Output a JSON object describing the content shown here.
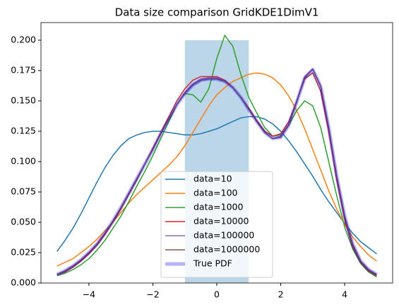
{
  "chart_data": {
    "type": "line",
    "title": "Data size comparison GridKDE1DimV1",
    "x": [
      -5,
      -4.75,
      -4.5,
      -4.25,
      -4,
      -3.75,
      -3.5,
      -3.25,
      -3,
      -2.75,
      -2.5,
      -2.25,
      -2,
      -1.75,
      -1.5,
      -1.25,
      -1,
      -0.75,
      -0.5,
      -0.25,
      0,
      0.25,
      0.5,
      0.75,
      1,
      1.25,
      1.5,
      1.75,
      2,
      2.25,
      2.5,
      2.75,
      3,
      3.25,
      3.5,
      3.75,
      4,
      4.25,
      4.5,
      4.75,
      5
    ],
    "series": [
      {
        "name": "data=10",
        "color": "#1f77b4",
        "width": 1.5,
        "alpha": 1,
        "values": [
          0.026,
          0.035,
          0.045,
          0.057,
          0.07,
          0.083,
          0.095,
          0.105,
          0.113,
          0.119,
          0.122,
          0.124,
          0.125,
          0.125,
          0.124,
          0.123,
          0.122,
          0.122,
          0.123,
          0.125,
          0.127,
          0.13,
          0.133,
          0.136,
          0.137,
          0.137,
          0.135,
          0.131,
          0.125,
          0.117,
          0.108,
          0.098,
          0.088,
          0.077,
          0.067,
          0.058,
          0.049,
          0.041,
          0.034,
          0.029,
          0.024
        ]
      },
      {
        "name": "data=100",
        "color": "#ff7f0e",
        "width": 1.5,
        "alpha": 1,
        "values": [
          0.014,
          0.017,
          0.02,
          0.025,
          0.03,
          0.036,
          0.043,
          0.05,
          0.058,
          0.066,
          0.073,
          0.079,
          0.085,
          0.091,
          0.097,
          0.104,
          0.113,
          0.124,
          0.135,
          0.146,
          0.155,
          0.161,
          0.166,
          0.169,
          0.172,
          0.173,
          0.172,
          0.169,
          0.163,
          0.154,
          0.142,
          0.127,
          0.11,
          0.093,
          0.076,
          0.061,
          0.048,
          0.038,
          0.03,
          0.023,
          0.018
        ]
      },
      {
        "name": "data=1000",
        "color": "#2ca02c",
        "width": 1.5,
        "alpha": 1,
        "values": [
          0.006,
          0.008,
          0.011,
          0.015,
          0.02,
          0.027,
          0.035,
          0.045,
          0.055,
          0.067,
          0.08,
          0.092,
          0.105,
          0.119,
          0.133,
          0.147,
          0.156,
          0.155,
          0.149,
          0.16,
          0.185,
          0.204,
          0.195,
          0.172,
          0.153,
          0.14,
          0.128,
          0.121,
          0.122,
          0.13,
          0.142,
          0.15,
          0.146,
          0.128,
          0.1,
          0.072,
          0.046,
          0.028,
          0.016,
          0.009,
          0.005
        ]
      },
      {
        "name": "data=10000",
        "color": "#d62728",
        "width": 1.5,
        "alpha": 1,
        "values": [
          0.007,
          0.009,
          0.013,
          0.018,
          0.024,
          0.031,
          0.04,
          0.05,
          0.061,
          0.073,
          0.085,
          0.098,
          0.111,
          0.124,
          0.137,
          0.15,
          0.16,
          0.167,
          0.17,
          0.17,
          0.17,
          0.167,
          0.161,
          0.153,
          0.144,
          0.134,
          0.125,
          0.121,
          0.123,
          0.133,
          0.15,
          0.168,
          0.173,
          0.158,
          0.125,
          0.085,
          0.052,
          0.03,
          0.017,
          0.01,
          0.006
        ]
      },
      {
        "name": "data=100000",
        "color": "#9467bd",
        "width": 1.5,
        "alpha": 1,
        "values": [
          0.007,
          0.01,
          0.014,
          0.019,
          0.025,
          0.032,
          0.041,
          0.051,
          0.062,
          0.074,
          0.086,
          0.098,
          0.11,
          0.123,
          0.135,
          0.147,
          0.157,
          0.164,
          0.168,
          0.169,
          0.169,
          0.166,
          0.161,
          0.153,
          0.143,
          0.133,
          0.124,
          0.119,
          0.121,
          0.131,
          0.15,
          0.17,
          0.176,
          0.162,
          0.128,
          0.088,
          0.055,
          0.032,
          0.018,
          0.011,
          0.007
        ]
      },
      {
        "name": "data=1000000",
        "color": "#8c564b",
        "width": 1.5,
        "alpha": 1,
        "values": [
          0.007,
          0.01,
          0.014,
          0.019,
          0.025,
          0.032,
          0.041,
          0.051,
          0.062,
          0.074,
          0.086,
          0.098,
          0.11,
          0.123,
          0.135,
          0.147,
          0.156,
          0.163,
          0.167,
          0.168,
          0.168,
          0.166,
          0.161,
          0.153,
          0.143,
          0.133,
          0.124,
          0.119,
          0.12,
          0.13,
          0.149,
          0.169,
          0.176,
          0.162,
          0.128,
          0.088,
          0.055,
          0.032,
          0.018,
          0.011,
          0.007
        ]
      },
      {
        "name": "True PDF",
        "color": "#0000ff",
        "width": 5,
        "alpha": 0.3,
        "values": [
          0.007,
          0.01,
          0.014,
          0.019,
          0.025,
          0.032,
          0.041,
          0.051,
          0.062,
          0.074,
          0.086,
          0.098,
          0.11,
          0.123,
          0.135,
          0.147,
          0.156,
          0.163,
          0.167,
          0.168,
          0.168,
          0.166,
          0.161,
          0.153,
          0.143,
          0.133,
          0.124,
          0.119,
          0.12,
          0.13,
          0.149,
          0.169,
          0.176,
          0.162,
          0.128,
          0.088,
          0.055,
          0.032,
          0.018,
          0.011,
          0.007
        ]
      }
    ],
    "histogram": {
      "bins": [
        -1,
        1
      ],
      "values": [
        0.2
      ],
      "color": "#1f77b4",
      "alpha": 0.3
    },
    "xlim": [
      -5.5,
      5.5
    ],
    "ylim": [
      0,
      0.2145
    ],
    "xticks": [
      {
        "value": -4,
        "label": "−4"
      },
      {
        "value": -2,
        "label": "−2"
      },
      0,
      2,
      4
    ],
    "yticks": [
      {
        "value": 0,
        "label": "0.000"
      },
      {
        "value": 0.025,
        "label": "0.025"
      },
      {
        "value": 0.05,
        "label": "0.050"
      },
      {
        "value": 0.075,
        "label": "0.075"
      },
      {
        "value": 0.1,
        "label": "0.100"
      },
      {
        "value": 0.125,
        "label": "0.125"
      },
      {
        "value": 0.15,
        "label": "0.150"
      },
      {
        "value": 0.175,
        "label": "0.175"
      },
      {
        "value": 0.2,
        "label": "0.200"
      }
    ],
    "grid": false,
    "legend": "lower center"
  }
}
